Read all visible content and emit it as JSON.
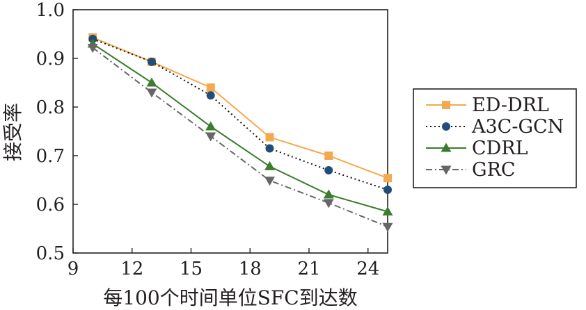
{
  "chart_data": {
    "type": "line",
    "title": "",
    "xlabel": "每100个时间单位SFC到达数",
    "ylabel": "接受率",
    "xlim": [
      9,
      25
    ],
    "ylim": [
      0.5,
      1.0
    ],
    "x_ticks": [
      9,
      12,
      15,
      18,
      21,
      24
    ],
    "y_ticks": [
      0.5,
      0.6,
      0.7,
      0.8,
      0.9,
      1.0
    ],
    "y_tick_labels": [
      "0.5",
      "0.6",
      "0.7",
      "0.8",
      "0.9",
      "1.0"
    ],
    "x_tick_labels": [
      "9",
      "12",
      "15",
      "18",
      "21",
      "24"
    ],
    "grid": false,
    "legend_position": "right",
    "x": [
      10,
      13,
      16,
      19,
      22,
      25
    ],
    "series": [
      {
        "name": "ED-DRL",
        "color": "#f5a84e",
        "marker": "square",
        "dash": "solid",
        "values": [
          0.943,
          0.893,
          0.84,
          0.738,
          0.7,
          0.654
        ]
      },
      {
        "name": "A3C-GCN",
        "color": "#1f4e79",
        "line_color": "#111111",
        "marker": "circle",
        "dash": "dotted",
        "values": [
          0.94,
          0.893,
          0.824,
          0.715,
          0.67,
          0.63
        ]
      },
      {
        "name": "CDRL",
        "color": "#3a7d2c",
        "marker": "triangle-up",
        "dash": "solid",
        "values": [
          0.93,
          0.85,
          0.76,
          0.678,
          0.62,
          0.585
        ]
      },
      {
        "name": "GRC",
        "color": "#666666",
        "marker": "triangle-down",
        "dash": "dashdot",
        "values": [
          0.922,
          0.83,
          0.74,
          0.649,
          0.603,
          0.554
        ]
      }
    ]
  }
}
